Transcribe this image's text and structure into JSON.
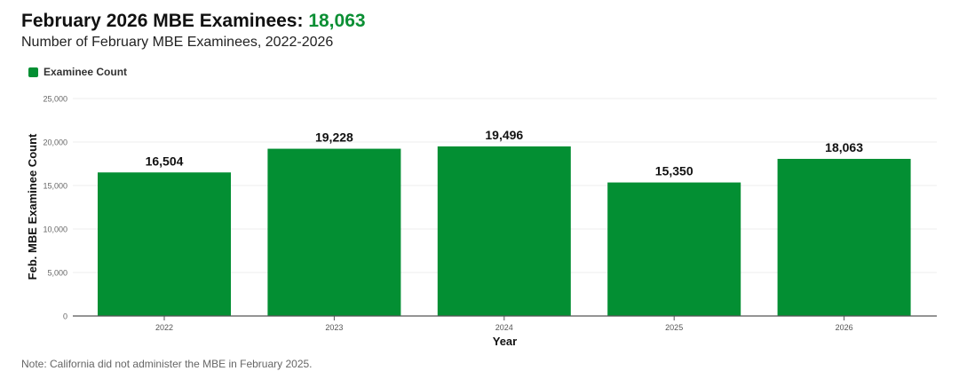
{
  "header": {
    "title_prefix": "February 2026 MBE Examinees:",
    "title_value": "18,063",
    "subtitle": "Number of February MBE Examinees, 2022-2026"
  },
  "legend": {
    "label": "Examinee Count"
  },
  "note": "Note: California did not administer the MBE in February 2025.",
  "colors": {
    "bar": "#038f33",
    "accent": "#0b8f34"
  },
  "chart_data": {
    "type": "bar",
    "title": "February 2026 MBE Examinees: 18,063",
    "subtitle": "Number of February MBE Examinees, 2022-2026",
    "categories": [
      "2022",
      "2023",
      "2024",
      "2025",
      "2026"
    ],
    "values": [
      16504,
      19228,
      19496,
      15350,
      18063
    ],
    "data_labels": [
      "16,504",
      "19,228",
      "19,496",
      "15,350",
      "18,063"
    ],
    "xlabel": "Year",
    "ylabel": "Feb. MBE Examinee Count",
    "ylim": [
      0,
      25000
    ],
    "yticks": [
      0,
      5000,
      10000,
      15000,
      20000,
      25000
    ],
    "ytick_labels": [
      "0",
      "5,000",
      "10,000",
      "15,000",
      "20,000",
      "25,000"
    ],
    "grid": true,
    "legend": "top-left"
  }
}
